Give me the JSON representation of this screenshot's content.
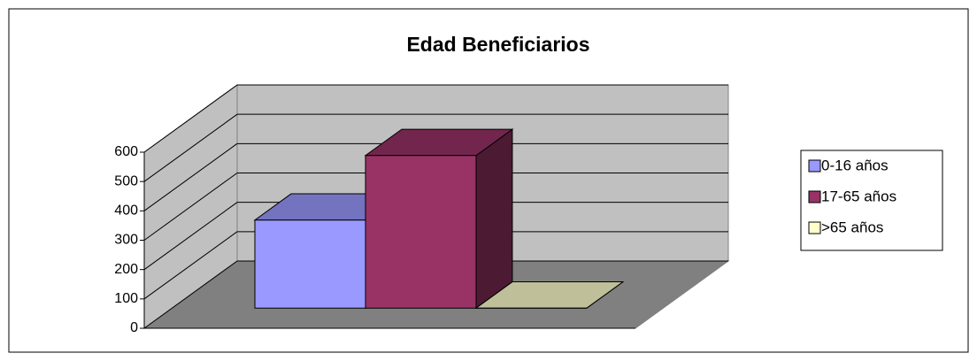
{
  "chart_data": {
    "type": "bar3d",
    "title": "Edad Beneficiarios",
    "categories": [
      null
    ],
    "series": [
      {
        "name": "0-16 años",
        "color": "#9999ff",
        "values": [
          300
        ]
      },
      {
        "name": "17-65 años",
        "color": "#993366",
        "values": [
          520
        ]
      },
      {
        "name": ">65 años",
        "color": "#ffffcc",
        "values": [
          0
        ]
      }
    ],
    "ylim": [
      0,
      600
    ],
    "yticks": [
      0,
      100,
      200,
      300,
      400,
      500,
      600
    ],
    "grid": true,
    "legend": "right"
  }
}
